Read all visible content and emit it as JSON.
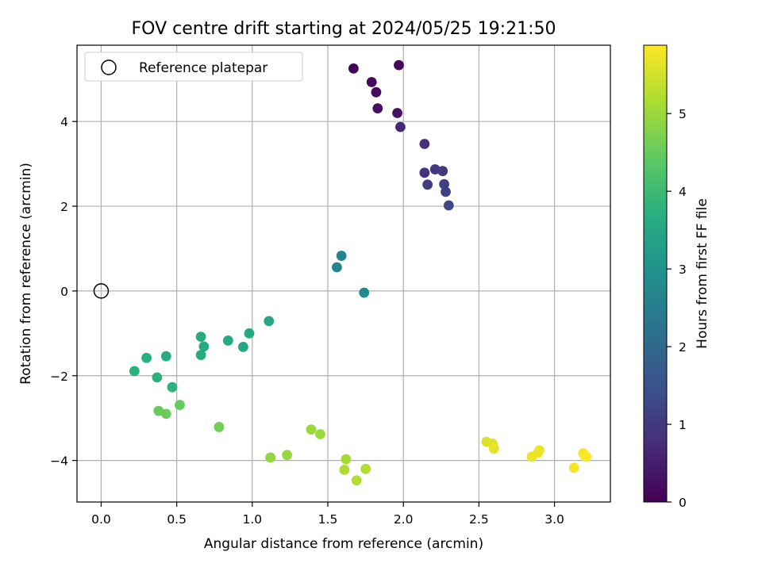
{
  "chart_data": {
    "type": "scatter",
    "title": "FOV centre drift starting at 2024/05/25 19:21:50",
    "xlabel": "Angular distance from reference (arcmin)",
    "ylabel": "Rotation from reference (arcmin)",
    "xlim": [
      -0.16,
      3.37
    ],
    "ylim": [
      -4.98,
      5.8
    ],
    "xticks": [
      0.0,
      0.5,
      1.0,
      1.5,
      2.0,
      2.5,
      3.0
    ],
    "xtick_labels": [
      "0.0",
      "0.5",
      "1.0",
      "1.5",
      "2.0",
      "2.5",
      "3.0"
    ],
    "yticks": [
      -4,
      -2,
      0,
      2,
      4
    ],
    "ytick_labels": [
      "−4",
      "−2",
      "0",
      "2",
      "4"
    ],
    "grid": true,
    "legend": {
      "position": "top-left",
      "entries": [
        "Reference platepar"
      ]
    },
    "colorbar": {
      "label": "Hours from first FF file",
      "range": [
        0,
        5.88
      ],
      "ticks": [
        0,
        1,
        2,
        3,
        4,
        5
      ],
      "tick_labels": [
        "0",
        "1",
        "2",
        "3",
        "4",
        "5"
      ],
      "colormap": "viridis"
    },
    "reference_point": {
      "x": 0.0,
      "y": 0.0
    },
    "points": [
      {
        "x": 1.67,
        "y": 5.25,
        "h": 0.05
      },
      {
        "x": 1.97,
        "y": 5.33,
        "h": 0.1
      },
      {
        "x": 1.79,
        "y": 4.93,
        "h": 0.15
      },
      {
        "x": 1.82,
        "y": 4.69,
        "h": 0.2
      },
      {
        "x": 1.83,
        "y": 4.31,
        "h": 0.25
      },
      {
        "x": 1.96,
        "y": 4.2,
        "h": 0.3
      },
      {
        "x": 1.98,
        "y": 3.87,
        "h": 0.65
      },
      {
        "x": 2.14,
        "y": 3.47,
        "h": 0.8
      },
      {
        "x": 2.14,
        "y": 2.79,
        "h": 0.9
      },
      {
        "x": 2.21,
        "y": 2.87,
        "h": 0.95
      },
      {
        "x": 2.26,
        "y": 2.83,
        "h": 1.0
      },
      {
        "x": 2.16,
        "y": 2.51,
        "h": 1.05
      },
      {
        "x": 2.27,
        "y": 2.52,
        "h": 1.1
      },
      {
        "x": 2.28,
        "y": 2.34,
        "h": 1.15
      },
      {
        "x": 2.3,
        "y": 2.02,
        "h": 1.25
      },
      {
        "x": 1.59,
        "y": 0.83,
        "h": 2.65
      },
      {
        "x": 1.56,
        "y": 0.56,
        "h": 2.7
      },
      {
        "x": 1.74,
        "y": -0.04,
        "h": 2.85
      },
      {
        "x": 1.11,
        "y": -0.71,
        "h": 3.5
      },
      {
        "x": 0.98,
        "y": -1.0,
        "h": 3.55
      },
      {
        "x": 0.66,
        "y": -1.08,
        "h": 3.6
      },
      {
        "x": 0.84,
        "y": -1.17,
        "h": 3.6
      },
      {
        "x": 0.68,
        "y": -1.31,
        "h": 3.6
      },
      {
        "x": 0.94,
        "y": -1.32,
        "h": 3.55
      },
      {
        "x": 0.66,
        "y": -1.51,
        "h": 3.65
      },
      {
        "x": 0.43,
        "y": -1.54,
        "h": 3.65
      },
      {
        "x": 0.3,
        "y": -1.58,
        "h": 3.7
      },
      {
        "x": 0.22,
        "y": -1.89,
        "h": 3.75
      },
      {
        "x": 0.37,
        "y": -2.04,
        "h": 3.75
      },
      {
        "x": 0.47,
        "y": -2.27,
        "h": 3.8
      },
      {
        "x": 0.52,
        "y": -2.69,
        "h": 4.5
      },
      {
        "x": 0.38,
        "y": -2.83,
        "h": 4.5
      },
      {
        "x": 0.43,
        "y": -2.9,
        "h": 4.55
      },
      {
        "x": 0.78,
        "y": -3.21,
        "h": 4.6
      },
      {
        "x": 1.12,
        "y": -3.93,
        "h": 4.9
      },
      {
        "x": 1.23,
        "y": -3.87,
        "h": 4.95
      },
      {
        "x": 1.39,
        "y": -3.27,
        "h": 5.0
      },
      {
        "x": 1.45,
        "y": -3.38,
        "h": 5.0
      },
      {
        "x": 1.62,
        "y": -3.97,
        "h": 5.1
      },
      {
        "x": 1.61,
        "y": -4.22,
        "h": 5.15
      },
      {
        "x": 1.69,
        "y": -4.47,
        "h": 5.2
      },
      {
        "x": 1.75,
        "y": -4.2,
        "h": 5.2
      },
      {
        "x": 2.55,
        "y": -3.56,
        "h": 5.6
      },
      {
        "x": 2.59,
        "y": -3.6,
        "h": 5.6
      },
      {
        "x": 2.6,
        "y": -3.72,
        "h": 5.65
      },
      {
        "x": 2.85,
        "y": -3.91,
        "h": 5.7
      },
      {
        "x": 2.89,
        "y": -3.82,
        "h": 5.7
      },
      {
        "x": 2.9,
        "y": -3.76,
        "h": 5.72
      },
      {
        "x": 3.13,
        "y": -4.17,
        "h": 5.8
      },
      {
        "x": 3.19,
        "y": -3.83,
        "h": 5.82
      },
      {
        "x": 3.2,
        "y": -3.88,
        "h": 5.84
      },
      {
        "x": 3.21,
        "y": -3.91,
        "h": 5.86
      }
    ]
  }
}
